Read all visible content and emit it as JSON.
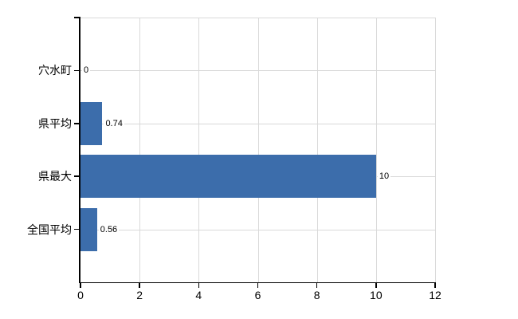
{
  "chart_data": {
    "type": "bar",
    "orientation": "horizontal",
    "title": "",
    "categories": [
      "穴水町",
      "県平均",
      "県最大",
      "全国平均"
    ],
    "values": [
      0,
      0.74,
      10,
      0.56
    ],
    "value_labels": [
      "0",
      "0.74",
      "10",
      "0.56"
    ],
    "xlim": [
      0,
      12
    ],
    "x_ticks": [
      {
        "value": 0,
        "label": "0"
      },
      {
        "value": 2,
        "label": "2"
      },
      {
        "value": 4,
        "label": "4"
      },
      {
        "value": 6,
        "label": "6"
      },
      {
        "value": 8,
        "label": "8"
      },
      {
        "value": 10,
        "label": "10"
      },
      {
        "value": 12,
        "label": "12"
      }
    ],
    "grid": "on",
    "legend": "none",
    "colors": {
      "bar": "#3c6dab",
      "grid": "#d9d9d9",
      "axis": "#000000",
      "text": "#000000",
      "background": "#ffffff"
    }
  }
}
